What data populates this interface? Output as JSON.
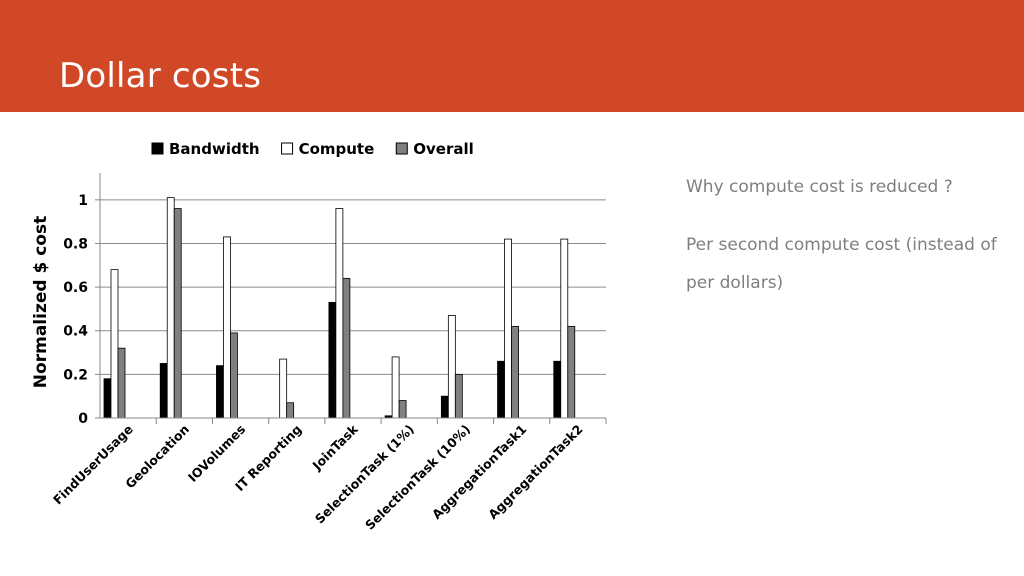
{
  "slide": {
    "title": "Dollar costs",
    "bullets": [
      "Why compute cost is reduced ?",
      "Per second compute cost (instead of per dollars)"
    ]
  },
  "colors": {
    "header": "#d14826",
    "bandwidth": "#000000",
    "compute": "#ffffff",
    "overall": "#808080",
    "grid": "#8c8c8c"
  },
  "chart_data": {
    "type": "bar",
    "title": "",
    "xlabel": "",
    "ylabel": "Normalized $ cost",
    "ylim": [
      0,
      1.1
    ],
    "yticks": [
      "0",
      "0.2",
      "0.4",
      "0.6",
      "0.8",
      "1"
    ],
    "grid": true,
    "legend_position": "top",
    "categories": [
      "FindUserUsage",
      "Geolocation",
      "IOVolumes",
      "IT Reporting",
      "JoinTask",
      "SelectionTask (1%)",
      "SelectionTask (10%)",
      "AggregationTask1",
      "AggregationTask2"
    ],
    "series": [
      {
        "name": "Bandwidth",
        "color": "#000000",
        "values": [
          0.18,
          0.25,
          0.24,
          0.0,
          0.53,
          0.01,
          0.1,
          0.26,
          0.26
        ]
      },
      {
        "name": "Compute",
        "color": "#ffffff",
        "values": [
          0.68,
          1.01,
          0.83,
          0.27,
          0.96,
          0.28,
          0.47,
          0.82,
          0.82
        ]
      },
      {
        "name": "Overall",
        "color": "#808080",
        "values": [
          0.32,
          0.96,
          0.39,
          0.07,
          0.64,
          0.08,
          0.2,
          0.42,
          0.42
        ]
      }
    ]
  }
}
